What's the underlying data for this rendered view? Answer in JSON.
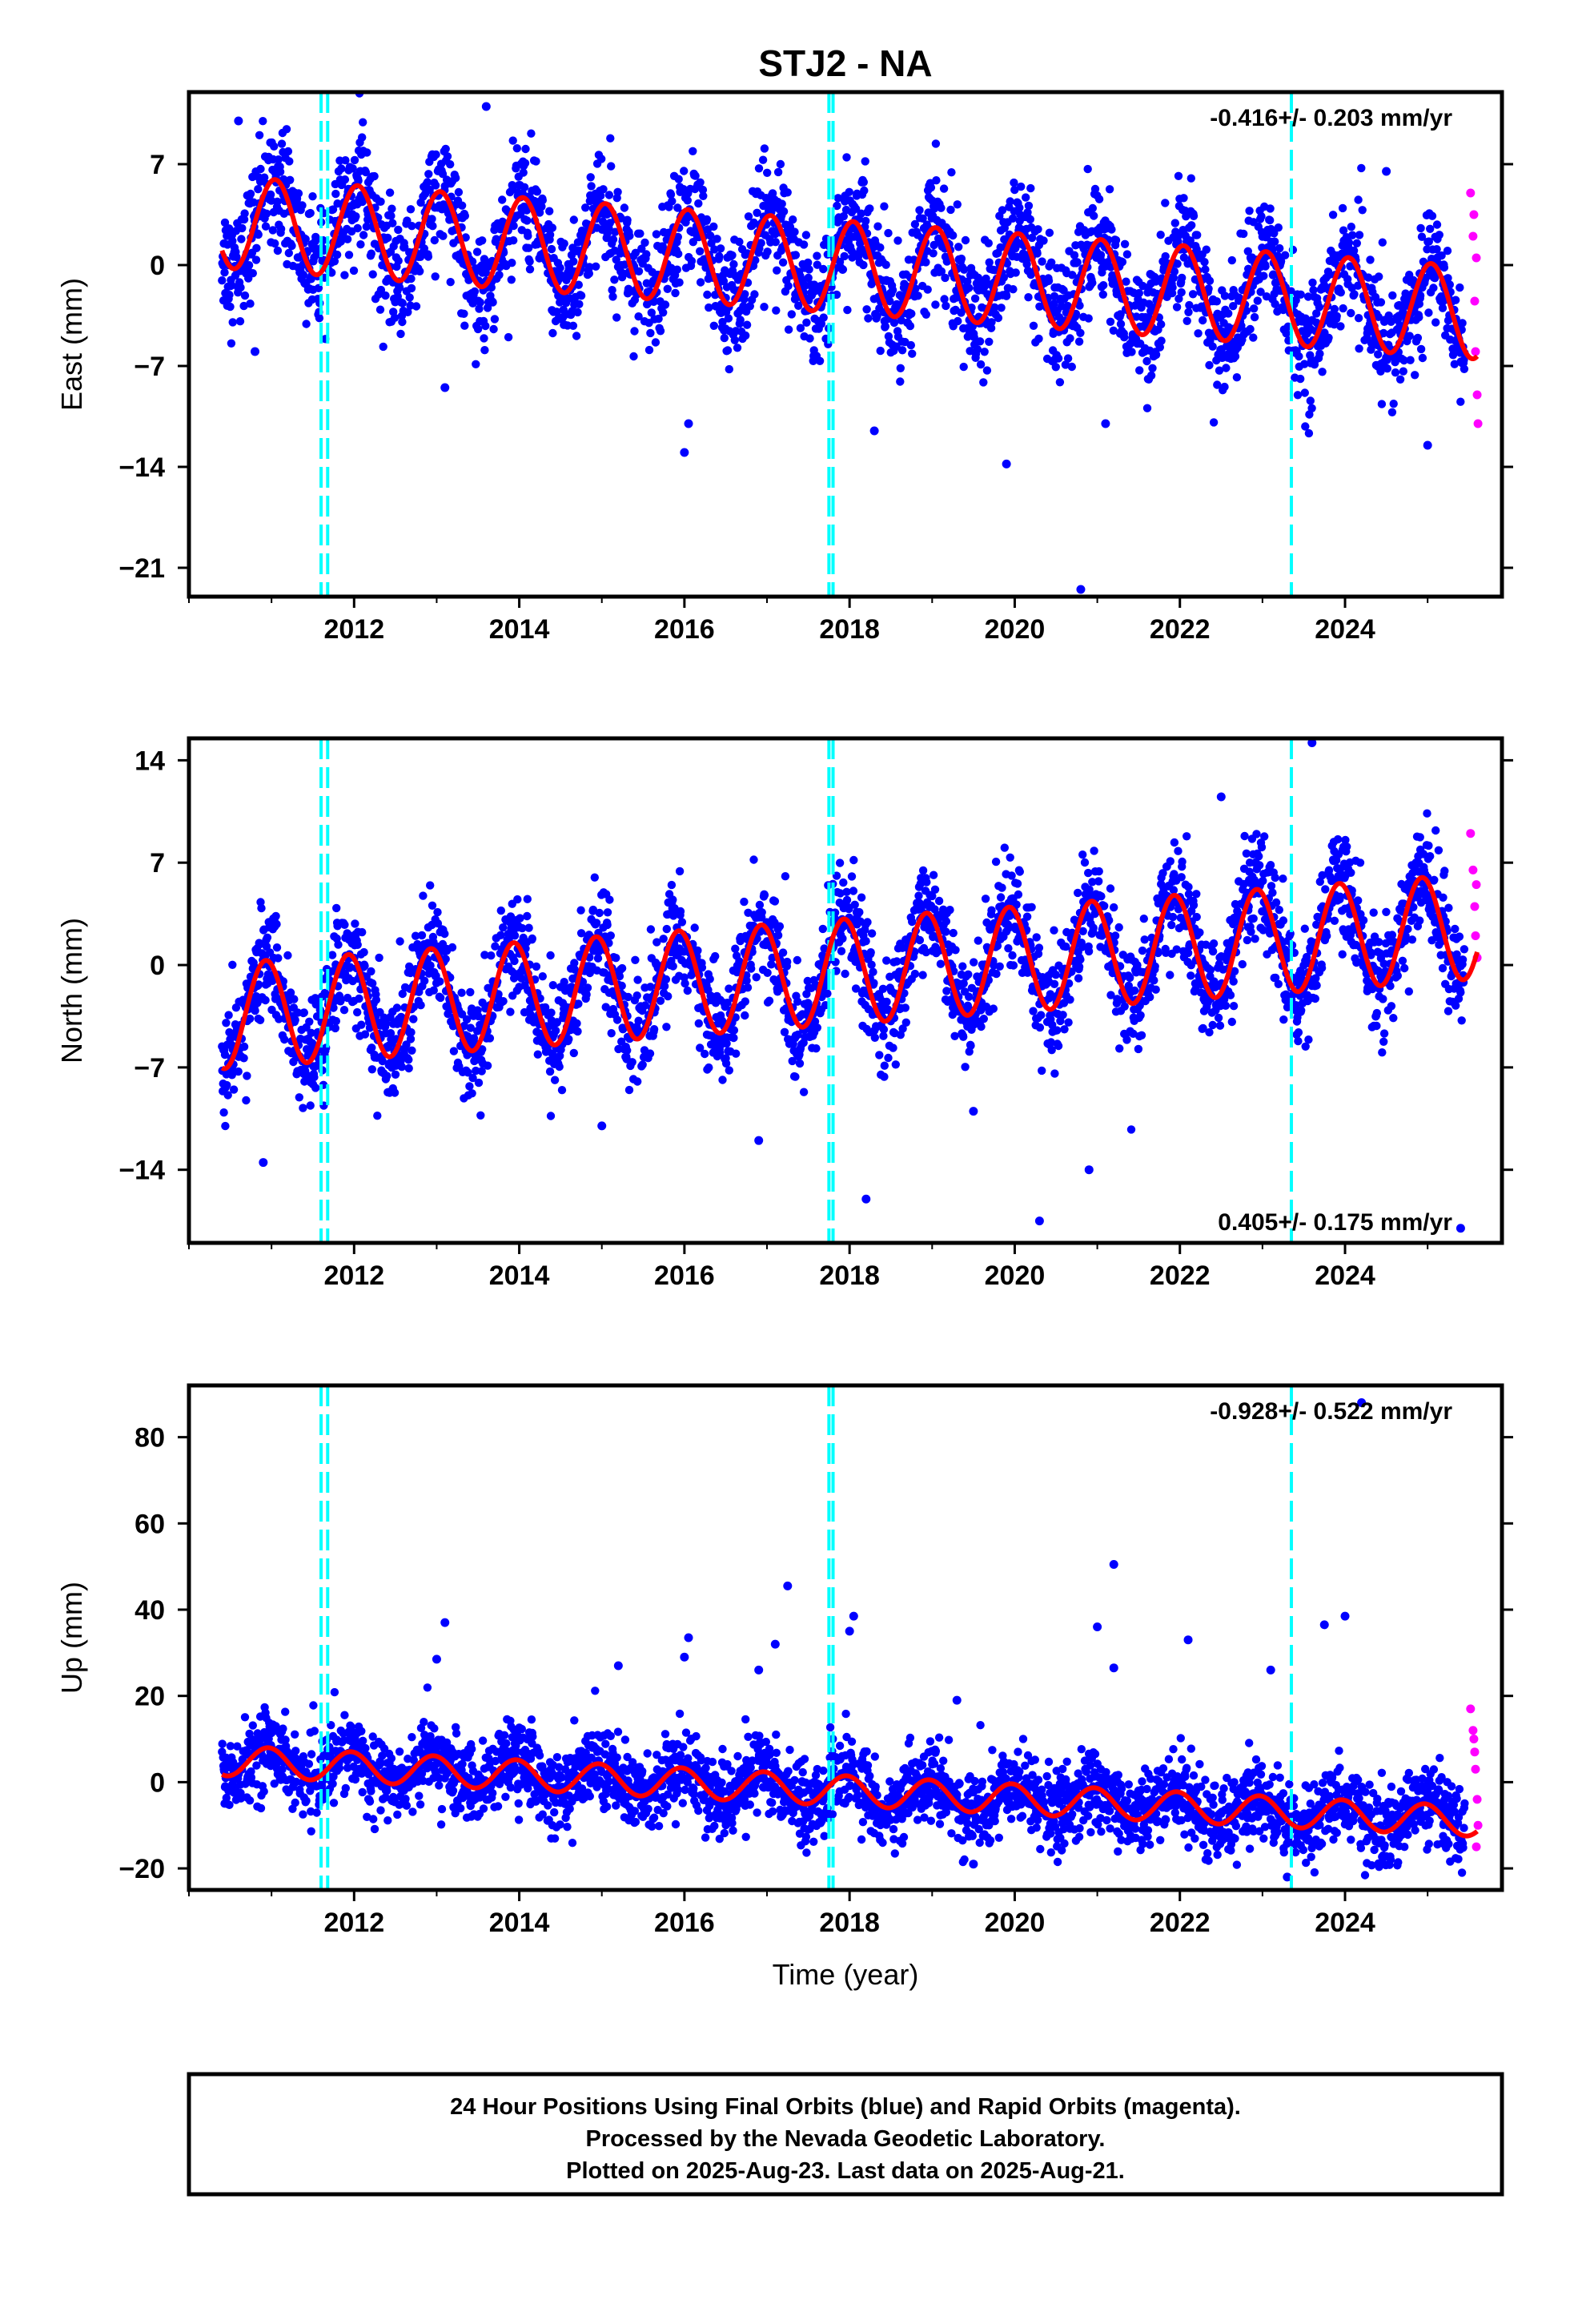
{
  "title": "STJ2 - NA",
  "colors": {
    "final_points": "#0000ff",
    "rapid_points": "#ff00ff",
    "model_line": "#ff0000",
    "event_lines": "#00ffff"
  },
  "chart_data": [
    {
      "type": "scatter",
      "panel": "east",
      "ylabel": "East (mm)",
      "xlabel": "",
      "xlim": [
        2010.0,
        2025.9
      ],
      "ylim": [
        -23.0,
        12.0
      ],
      "yticks": [
        7,
        0,
        -7,
        -14,
        -21
      ],
      "xticks": [
        2012,
        2014,
        2016,
        2018,
        2020,
        2022,
        2024
      ],
      "rate_text": "-0.416+/- 0.203 mm/yr",
      "rate_position": "top-right",
      "event_lines": [
        2011.6,
        2011.68,
        2017.75,
        2017.8,
        2023.35
      ],
      "model": {
        "intercept": 3.0,
        "slope": -0.416,
        "amplitude": 3.2,
        "phase": 1.3,
        "noise": 2.0,
        "start": 2010.4,
        "end": 2025.45
      },
      "outliers": [
        {
          "x": 2010.6,
          "y": 10.0
        },
        {
          "x": 2013.6,
          "y": 11.0
        },
        {
          "x": 2016.0,
          "y": -13.0
        },
        {
          "x": 2016.05,
          "y": -11.0
        },
        {
          "x": 2020.8,
          "y": -22.5
        },
        {
          "x": 2019.9,
          "y": -13.8
        },
        {
          "x": 2024.5,
          "y": 6.5
        },
        {
          "x": 2025.0,
          "y": -12.5
        },
        {
          "x": 2021.1,
          "y": -11.0
        },
        {
          "x": 2018.3,
          "y": -11.5
        },
        {
          "x": 2010.8,
          "y": -6.0
        },
        {
          "x": 2013.1,
          "y": -8.5
        }
      ],
      "rapid_points": [
        {
          "x": 2025.52,
          "y": 5.0
        },
        {
          "x": 2025.55,
          "y": 2.0
        },
        {
          "x": 2025.57,
          "y": -2.5
        },
        {
          "x": 2025.58,
          "y": -6.0
        },
        {
          "x": 2025.6,
          "y": -9.0
        },
        {
          "x": 2025.61,
          "y": -11.0
        },
        {
          "x": 2025.59,
          "y": 0.5
        },
        {
          "x": 2025.56,
          "y": 3.5
        }
      ]
    },
    {
      "type": "scatter",
      "panel": "north",
      "ylabel": "North (mm)",
      "xlabel": "",
      "xlim": [
        2010.0,
        2025.9
      ],
      "ylim": [
        -19.0,
        15.5
      ],
      "yticks": [
        14,
        7,
        0,
        -7,
        -14
      ],
      "xticks": [
        2012,
        2014,
        2016,
        2018,
        2020,
        2022,
        2024
      ],
      "rate_text": "0.405+/- 0.175 mm/yr",
      "rate_position": "bottom-right",
      "event_lines": [
        2011.6,
        2011.68,
        2017.75,
        2017.8,
        2023.35
      ],
      "model": {
        "intercept": -3.5,
        "slope": 0.405,
        "amplitude": 3.6,
        "phase": 2.0,
        "noise": 1.8,
        "start": 2010.4,
        "end": 2025.45
      },
      "outliers": [
        {
          "x": 2023.6,
          "y": 15.2
        },
        {
          "x": 2022.5,
          "y": 11.5
        },
        {
          "x": 2010.9,
          "y": -13.5
        },
        {
          "x": 2020.3,
          "y": -17.5
        },
        {
          "x": 2018.2,
          "y": -16.0
        },
        {
          "x": 2020.9,
          "y": -14.0
        },
        {
          "x": 2025.4,
          "y": -18.0
        },
        {
          "x": 2015.0,
          "y": -11.0
        },
        {
          "x": 2016.9,
          "y": -12.0
        },
        {
          "x": 2019.5,
          "y": -10.0
        }
      ],
      "rapid_points": [
        {
          "x": 2025.52,
          "y": 9.0
        },
        {
          "x": 2025.55,
          "y": 6.5
        },
        {
          "x": 2025.57,
          "y": 4.0
        },
        {
          "x": 2025.58,
          "y": 2.0
        },
        {
          "x": 2025.6,
          "y": 0.5
        },
        {
          "x": 2025.59,
          "y": 5.5
        }
      ]
    },
    {
      "type": "scatter",
      "panel": "up",
      "ylabel": "Up (mm)",
      "xlabel": "Time (year)",
      "xlim": [
        2010.0,
        2025.9
      ],
      "ylim": [
        -25.0,
        92.0
      ],
      "yticks": [
        80,
        60,
        40,
        20,
        0,
        -20
      ],
      "xticks": [
        2012,
        2014,
        2016,
        2018,
        2020,
        2022,
        2024
      ],
      "rate_text": "-0.928+/- 0.522 mm/yr",
      "rate_position": "top-right",
      "event_lines": [
        2011.6,
        2011.68,
        2017.75,
        2017.8,
        2023.35
      ],
      "model": {
        "intercept": 5.0,
        "slope": -0.928,
        "amplitude": 3.5,
        "phase": 1.8,
        "noise": 4.5,
        "start": 2010.4,
        "end": 2025.45
      },
      "outliers": [
        {
          "x": 2013.1,
          "y": 37.0
        },
        {
          "x": 2013.0,
          "y": 28.5
        },
        {
          "x": 2016.05,
          "y": 33.5
        },
        {
          "x": 2016.0,
          "y": 29.0
        },
        {
          "x": 2017.25,
          "y": 45.5
        },
        {
          "x": 2017.1,
          "y": 32.0
        },
        {
          "x": 2016.9,
          "y": 26.0
        },
        {
          "x": 2018.05,
          "y": 38.5
        },
        {
          "x": 2018.0,
          "y": 35.0
        },
        {
          "x": 2021.2,
          "y": 50.5
        },
        {
          "x": 2021.0,
          "y": 36.0
        },
        {
          "x": 2021.2,
          "y": 26.5
        },
        {
          "x": 2022.1,
          "y": 33.0
        },
        {
          "x": 2023.1,
          "y": 26.0
        },
        {
          "x": 2023.75,
          "y": 36.5
        },
        {
          "x": 2024.0,
          "y": 38.5
        },
        {
          "x": 2015.2,
          "y": 27.0
        },
        {
          "x": 2019.3,
          "y": 19.0
        },
        {
          "x": 2023.3,
          "y": -22.0
        },
        {
          "x": 2019.5,
          "y": -19.0
        },
        {
          "x": 2024.2,
          "y": 88.0
        }
      ],
      "rapid_points": [
        {
          "x": 2025.52,
          "y": 17.0
        },
        {
          "x": 2025.55,
          "y": 12.0
        },
        {
          "x": 2025.57,
          "y": 7.0
        },
        {
          "x": 2025.58,
          "y": 3.0
        },
        {
          "x": 2025.6,
          "y": -4.0
        },
        {
          "x": 2025.61,
          "y": -10.0
        },
        {
          "x": 2025.59,
          "y": -15.0
        },
        {
          "x": 2025.56,
          "y": 10.0
        }
      ]
    }
  ],
  "footer": {
    "line1": "24 Hour Positions Using Final Orbits (blue) and Rapid Orbits (magenta).",
    "line2": "Processed by the Nevada Geodetic Laboratory.",
    "line3": "Plotted on 2025-Aug-23. Last data on 2025-Aug-21."
  }
}
